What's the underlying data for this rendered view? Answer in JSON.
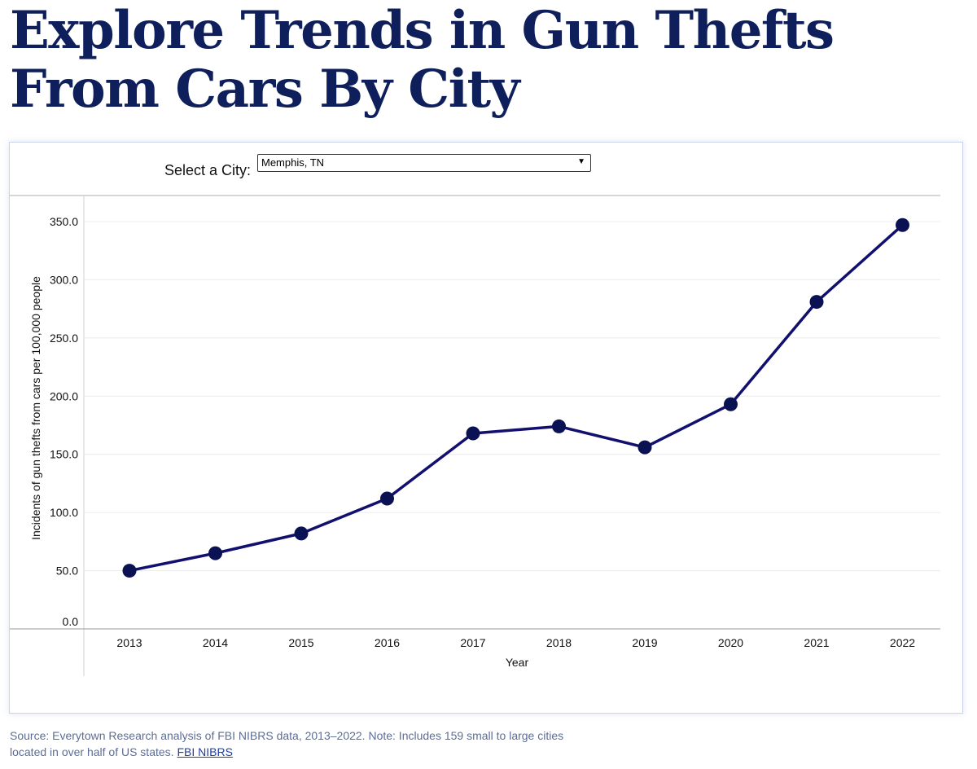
{
  "page": {
    "title": "Explore Trends in Gun Thefts From Cars By City"
  },
  "selector": {
    "label": "Select a City:",
    "selected_value": "Memphis, TN"
  },
  "source": {
    "text": "Source: Everytown Research analysis of FBI NIBRS data, 2013–2022. Note: Includes 159 small to large cities located in over half of US states.",
    "link_label": "FBI NIBRS"
  },
  "colors": {
    "title": "#0e1f5b",
    "series_line": "#12106e",
    "series_point": "#0b1254",
    "source_text": "#5b6e98",
    "link": "#1f3f9e"
  },
  "chart_data": {
    "type": "line",
    "title": "",
    "xlabel": "Year",
    "ylabel": "Incidents of gun thefts from cars per 100,000 people",
    "categories": [
      "2013",
      "2014",
      "2015",
      "2016",
      "2017",
      "2018",
      "2019",
      "2020",
      "2021",
      "2022"
    ],
    "series": [
      {
        "values": [
          50,
          65,
          82,
          112,
          168,
          174,
          156,
          193,
          281,
          347
        ]
      }
    ],
    "ylim": [
      0,
      350
    ],
    "yticks": [
      "0.0",
      "50.0",
      "100.0",
      "150.0",
      "200.0",
      "250.0",
      "300.0",
      "350.0"
    ],
    "grid": true,
    "legend": "none"
  }
}
